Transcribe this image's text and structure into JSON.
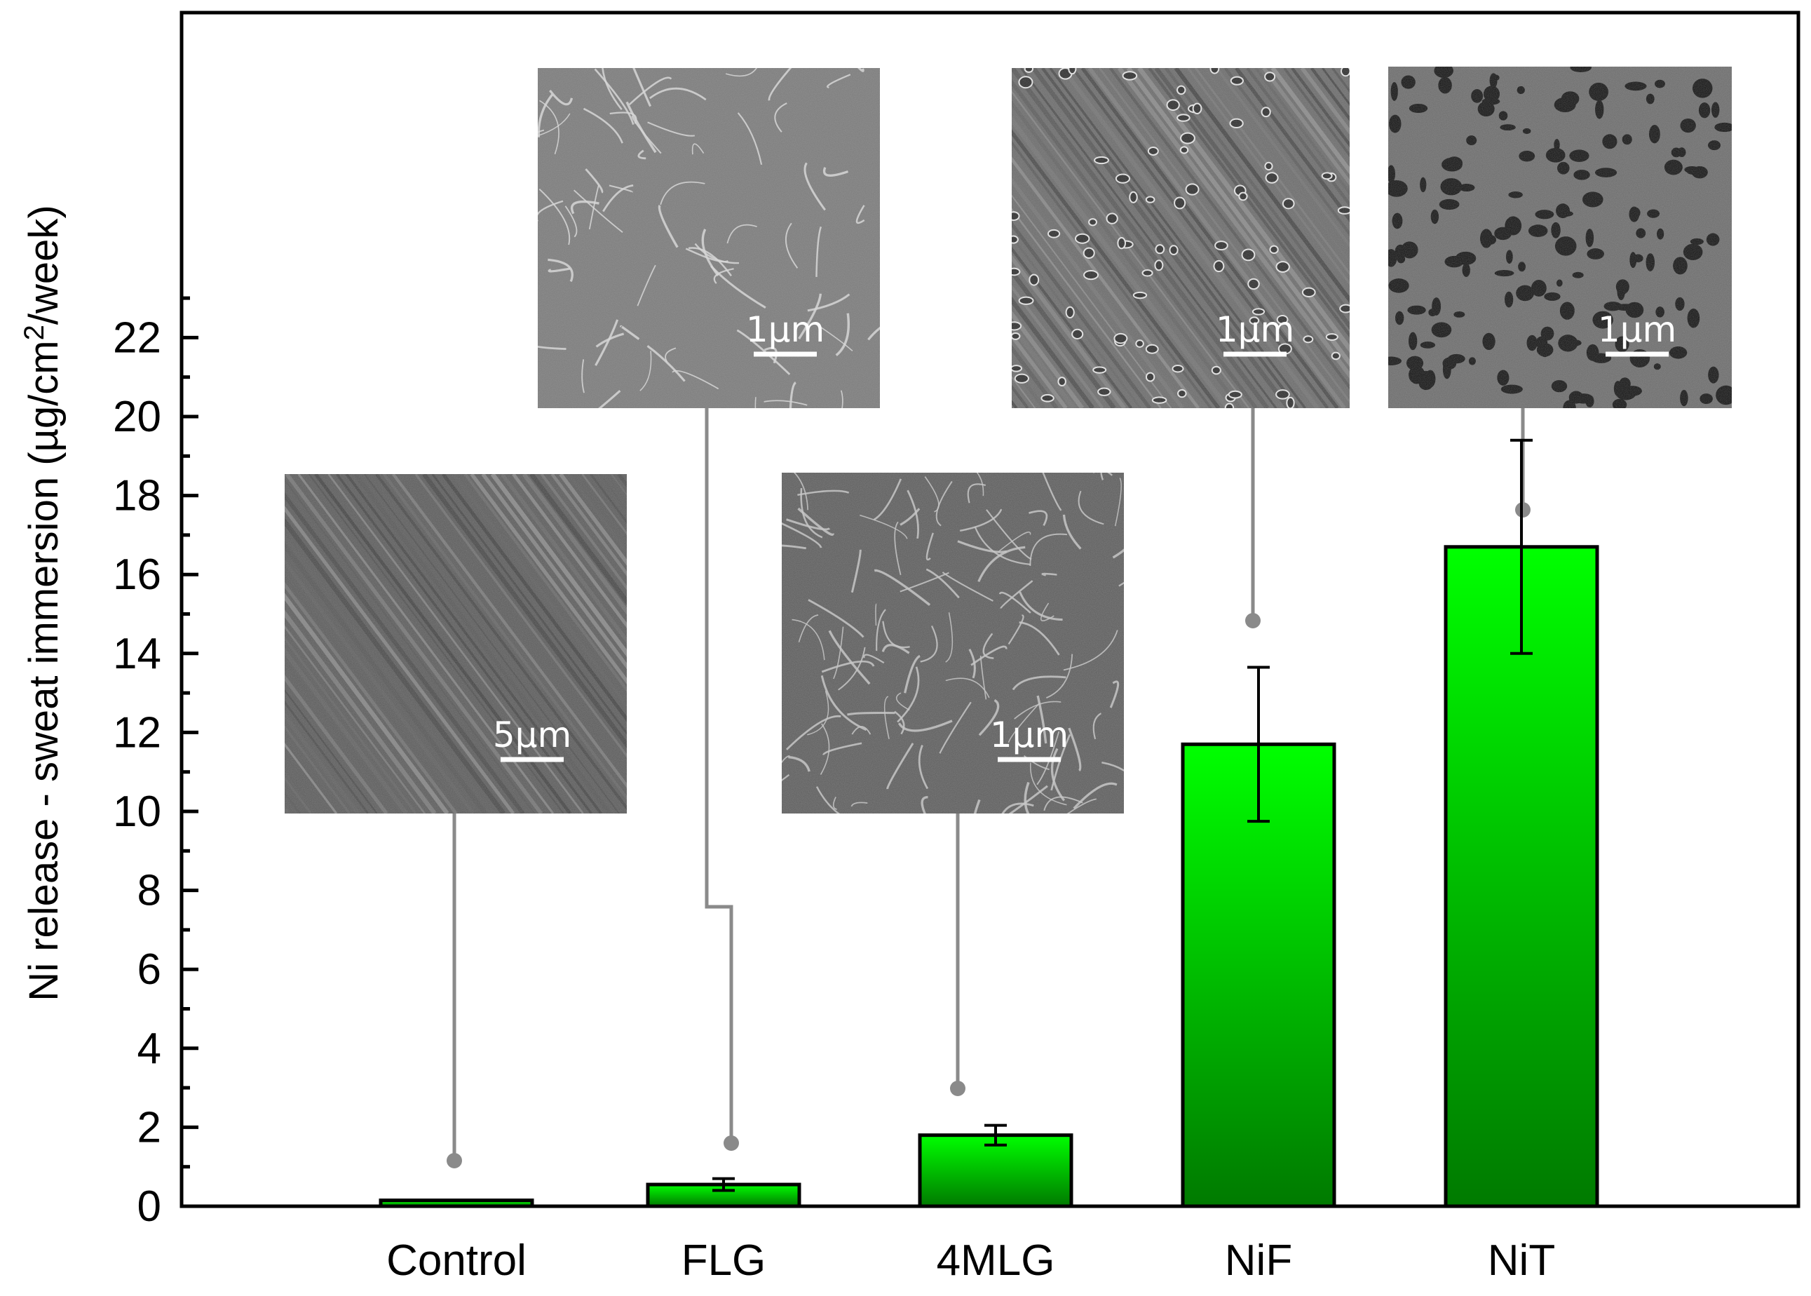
{
  "chart_data": {
    "type": "bar",
    "categories": [
      "Control",
      "FLG",
      "4MLG",
      "NiF",
      "NiT"
    ],
    "values": [
      0.15,
      0.55,
      1.8,
      11.7,
      16.7
    ],
    "errors": [
      0,
      0.15,
      0.25,
      1.95,
      2.7
    ],
    "ylabel": "Ni release - sweat immersion (µg/cm²/week)",
    "ylim": [
      0,
      30
    ],
    "yticks": [
      0,
      2,
      4,
      6,
      8,
      10,
      12,
      14,
      16,
      18,
      20,
      22
    ],
    "ytick_labels": [
      "0",
      "2",
      "4",
      "6",
      "8",
      "10",
      "12",
      "14",
      "16",
      "18",
      "20",
      "22"
    ],
    "bar_color_top": "#00ff00",
    "bar_color_bottom": "#007a00",
    "grid": false,
    "legend": "none",
    "insets": [
      {
        "category": "Control",
        "scale_bar": "5µm",
        "texture": "parallel-scratches"
      },
      {
        "category": "FLG",
        "scale_bar": "1µm",
        "texture": "wrinkled-film"
      },
      {
        "category": "4MLG",
        "scale_bar": "1µm",
        "texture": "rough-ridges"
      },
      {
        "category": "NiF",
        "scale_bar": "1µm",
        "texture": "pitted-scratches"
      },
      {
        "category": "NiT",
        "scale_bar": "1µm",
        "texture": "porous-surface"
      }
    ]
  }
}
